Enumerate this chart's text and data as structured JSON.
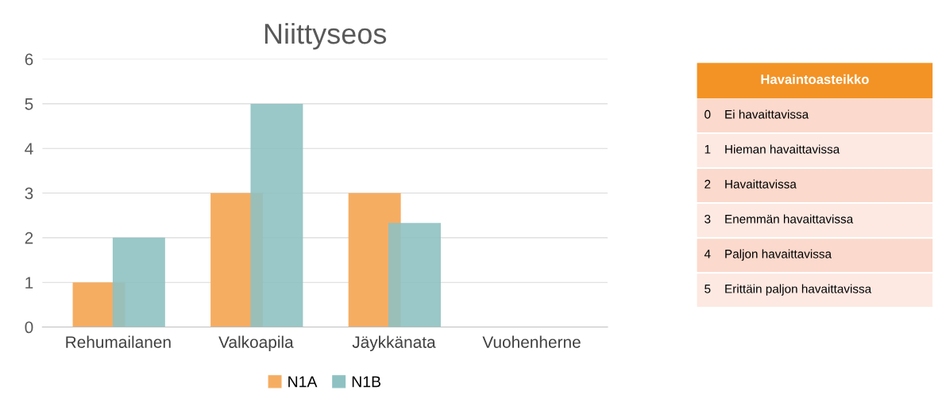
{
  "chart_data": [
    {
      "type": "bar",
      "title": "Niittyseos",
      "categories": [
        "Rehumailanen",
        "Valkoapila",
        "Jäykkänata",
        "Vuohenherne"
      ],
      "series": [
        {
          "name": "N1A",
          "color": "#f5ad62",
          "values": [
            1,
            3,
            3,
            0
          ]
        },
        {
          "name": "N1B",
          "color": "#8fc1c2",
          "values": [
            2,
            5,
            2.33,
            0
          ]
        }
      ],
      "ylim": [
        0,
        6
      ],
      "yticks": [
        0,
        1,
        2,
        3,
        4,
        5,
        6
      ],
      "grid": "y",
      "legend": "bottom"
    },
    {
      "type": "other",
      "title": "Havaintoasteikko",
      "annotations": [
        "0    Ei havaittavissa",
        "1    Hieman havaittavissa",
        "2    Havaittavissa",
        "3    Enemmän havaittavissa",
        "4    Paljon havaittavissa",
        "5    Erittäin paljon havaittavissa"
      ]
    }
  ]
}
